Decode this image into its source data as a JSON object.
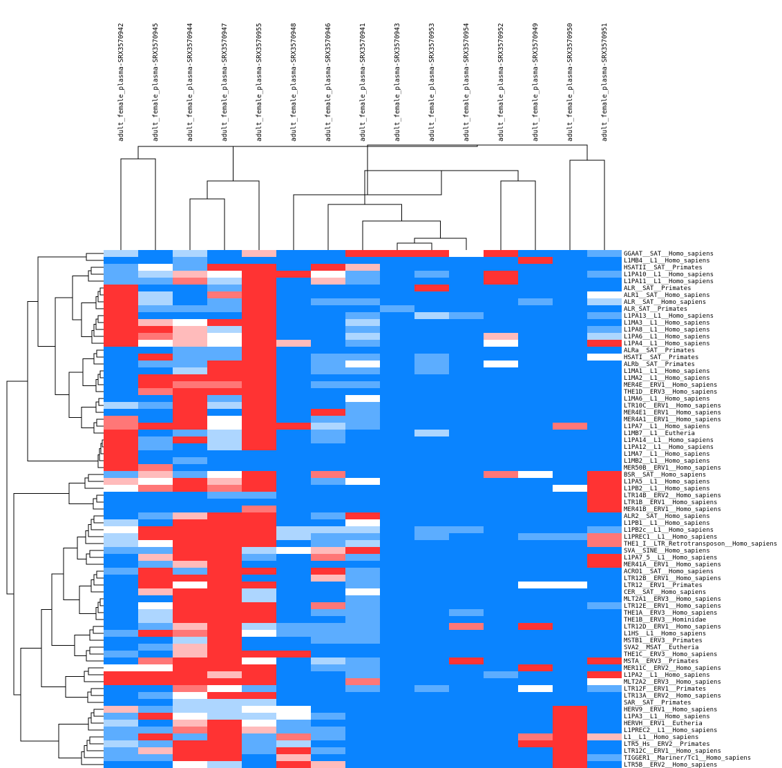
{
  "chart_data": {
    "type": "heatmap",
    "title": "",
    "columns": [
      "adult_female_plasma-SRX3570942",
      "adult_female_plasma-SRX3570945",
      "adult_female_plasma-SRX3570944",
      "adult_female_plasma-SRX3570947",
      "adult_female_plasma-SRX3570955",
      "adult_female_plasma-SRX3570948",
      "adult_female_plasma-SRX3570946",
      "adult_female_plasma-SRX3570941",
      "adult_female_plasma-SRX3570943",
      "adult_female_plasma-SRX3570953",
      "adult_female_plasma-SRX3570954",
      "adult_female_plasma-SRX3570952",
      "adult_female_plasma-SRX3570949",
      "adult_female_plasma-SRX3570950",
      "adult_female_plasma-SRX3570951"
    ],
    "rows": [
      "GGAAT__SAT__Homo_sapiens",
      "L1MB4__L1__Homo_sapiens",
      "HSATII__SAT__Primates",
      "L1PA10__L1__Homo_sapiens",
      "L1PA11__L1__Homo_sapiens",
      "ALR__SAT__Primates",
      "ALR1__SAT__Homo_sapiens",
      "ALR__SAT__Homo_sapiens",
      "ALR_SAT__Primates",
      "L1PA13__L1__Homo_sapiens",
      "L1MA3__L1__Homo_sapiens",
      "L1PA8__L1__Homo_sapiens",
      "L1PA6__L1__Homo_sapiens",
      "L1PA4__L1__Homo_sapiens",
      "ALRa__SAT__Primates",
      "HSATI__SAT__Primates",
      "ALRb__SAT__Primates",
      "L1MA1__L1__Homo_sapiens",
      "L1MA2__L1__Homo_sapiens",
      "MER4E__ERV1__Homo_sapiens",
      "THE1D__ERV3__Homo_sapiens",
      "L1MA6__L1__Homo_sapiens",
      "LTR10C__ERV1__Homo_sapiens",
      "MER4E1__ERV1__Homo_sapiens",
      "MER4A1__ERV1__Homo_sapiens",
      "L1PA7__L1__Homo_sapiens",
      "L1MB7__L1__Eutheria",
      "L1PA14__L1__Homo_sapiens",
      "L1PA12__L1__Homo_sapiens",
      "L1MA7__L1__Homo_sapiens",
      "L1MB2__L1__Homo_sapiens",
      "MER50B__ERV1__Homo_sapiens",
      "BSR__SAT__Homo_sapiens",
      "L1PA5__L1__Homo_sapiens",
      "L1PB2__L1__Homo_sapiens",
      "LTR14B__ERV2__Homo_sapiens",
      "LTR1B__ERV1__Homo_sapiens",
      "MER41B__ERV1__Homo_sapiens",
      "ALR2__SAT__Homo_sapiens",
      "L1PB1__L1__Homo_sapiens",
      "L1PB2c__L1__Homo_sapiens",
      "L1PREC1__L1__Homo_sapiens",
      "THE1_I__LTR_Retrotransposon__Homo_sapiens",
      "SVA__SINE__Homo_sapiens",
      "L1PA7_5__L1__Homo_sapiens",
      "MER41A__ERV1__Homo_sapiens",
      "ACRO1__SAT__Homo_sapiens",
      "LTR12B__ERV1__Homo_sapiens",
      "LTR12__ERV1__Primates",
      "CER__SAT__Homo_sapiens",
      "MLT2A1__ERV3__Homo_sapiens",
      "LTR12E__ERV1__Homo_sapiens",
      "THE1A__ERV3__Homo_sapiens",
      "THE1B__ERV3__Hominidae",
      "LTR12D__ERV1__Homo_sapiens",
      "L1HS__L1__Homo_sapiens",
      "MSTB1__ERV3__Primates",
      "SVA2__MSAT__Eutheria",
      "THE1C__ERV3__Homo_sapiens",
      "MSTA__ERV3__Primates",
      "MER11C__ERV2__Homo_sapiens",
      "L1PA2__L1__Homo_sapiens",
      "MLT2A2__ERV3__Homo_sapiens",
      "LTR12F__ERV1__Primates",
      "LTR13A__ERV2__Homo_sapiens",
      "SAR__SAT__Primates",
      "HERV9__ERV1__Homo_sapiens",
      "L1PA3__L1__Homo_sapiens",
      "HERVH__ERV1__Eutheria",
      "L1PREC2__L1__Homo_sapiens",
      "L1__L1__Homo_sapiens",
      "LTR5_Hs__ERV2__Primates",
      "LTR12C__ERV1__Homo_sapiens",
      "TIGGER1__Mariner/Tc1__Homo_sapiens",
      "LTR5B__ERV2__Homo_sapiens"
    ],
    "colorscale": [
      "#0a84ff",
      "#ffffff",
      "#ff3333"
    ],
    "value_range": [
      -3,
      3
    ],
    "values": [
      [
        -1,
        -3,
        -1,
        -3,
        1,
        -3,
        -3,
        3,
        3,
        3,
        0,
        3,
        -3,
        -3,
        -2
      ],
      [
        -3,
        -3,
        -2,
        -3,
        -3,
        -3,
        -3,
        -3,
        -3,
        -3,
        -3,
        -3,
        3,
        -3,
        -3
      ],
      [
        -2,
        0,
        -2,
        3,
        3,
        -3,
        3,
        1,
        -3,
        -3,
        -3,
        -3,
        -3,
        -3,
        -3
      ],
      [
        -2,
        -1,
        1,
        0,
        3,
        3,
        0,
        -2,
        -3,
        -2,
        -3,
        3,
        -3,
        -3,
        -2
      ],
      [
        -2,
        -2,
        2,
        -1,
        3,
        -3,
        1,
        -2,
        -3,
        -3,
        -3,
        3,
        -3,
        -3,
        -3
      ],
      [
        3,
        -3,
        -3,
        -2,
        3,
        -3,
        -3,
        -3,
        -3,
        3,
        -3,
        -3,
        -3,
        -3,
        -3
      ],
      [
        3,
        -1,
        -3,
        2,
        3,
        -3,
        -3,
        -3,
        -3,
        -3,
        -3,
        -3,
        -3,
        -3,
        0
      ],
      [
        3,
        -1,
        -3,
        -2,
        3,
        -3,
        -2,
        -2,
        -3,
        -3,
        -3,
        -3,
        -2,
        -3,
        -1
      ],
      [
        3,
        -2,
        -2,
        -2,
        3,
        -3,
        -3,
        -3,
        -2,
        -3,
        -3,
        -3,
        -3,
        -3,
        -3
      ],
      [
        3,
        -3,
        -3,
        -3,
        3,
        -3,
        -3,
        -2,
        -3,
        -1,
        -2,
        -3,
        -3,
        -3,
        -2
      ],
      [
        3,
        1,
        0,
        3,
        3,
        -3,
        -3,
        -1,
        -3,
        -3,
        -3,
        -3,
        -3,
        -3,
        -3
      ],
      [
        3,
        3,
        1,
        -1,
        3,
        -3,
        -3,
        -2,
        -3,
        -3,
        -3,
        -3,
        -3,
        -3,
        -2
      ],
      [
        3,
        2,
        1,
        0,
        3,
        -3,
        -3,
        -1,
        -3,
        -3,
        -3,
        1,
        -3,
        -3,
        -1
      ],
      [
        3,
        0,
        1,
        0,
        3,
        1,
        -3,
        -2,
        -3,
        -3,
        -3,
        0,
        -3,
        -3,
        3
      ],
      [
        -3,
        -3,
        -2,
        -2,
        3,
        -3,
        -3,
        -3,
        -3,
        -3,
        -3,
        -3,
        -3,
        -3,
        -3
      ],
      [
        -3,
        3,
        -2,
        -2,
        3,
        -3,
        -2,
        -2,
        -3,
        -2,
        -3,
        -3,
        -3,
        -3,
        0
      ],
      [
        -3,
        -2,
        -2,
        3,
        3,
        -3,
        -2,
        0,
        -3,
        -2,
        -3,
        0,
        -3,
        -3,
        -3
      ],
      [
        -3,
        -3,
        -1,
        3,
        3,
        -3,
        -2,
        -2,
        -3,
        -2,
        -3,
        -3,
        -3,
        -3,
        -3
      ],
      [
        -3,
        3,
        3,
        3,
        3,
        -3,
        -3,
        -3,
        -3,
        -3,
        -3,
        -3,
        -3,
        -3,
        -3
      ],
      [
        -3,
        3,
        2,
        2,
        3,
        -3,
        -2,
        -2,
        -3,
        -3,
        -3,
        -3,
        -3,
        -3,
        -3
      ],
      [
        -3,
        2,
        3,
        3,
        3,
        -3,
        -3,
        -3,
        -3,
        -3,
        -3,
        -3,
        -3,
        -3,
        -3
      ],
      [
        -3,
        -3,
        3,
        -2,
        3,
        -3,
        -3,
        0,
        -3,
        -3,
        -3,
        -3,
        -3,
        -3,
        -3
      ],
      [
        -1,
        -2,
        3,
        -1,
        3,
        -3,
        -3,
        -2,
        -3,
        -3,
        -3,
        -3,
        -3,
        -3,
        -3
      ],
      [
        -3,
        -3,
        3,
        -3,
        3,
        -3,
        3,
        -2,
        -3,
        -3,
        -3,
        -3,
        -3,
        -3,
        -3
      ],
      [
        2,
        -3,
        3,
        0,
        3,
        -3,
        -2,
        -2,
        -3,
        -3,
        -3,
        -3,
        -3,
        -3,
        -3
      ],
      [
        2,
        3,
        3,
        0,
        3,
        3,
        -1,
        -2,
        -3,
        -3,
        -3,
        -3,
        -3,
        2,
        -3
      ],
      [
        3,
        -3,
        -2,
        -1,
        3,
        -3,
        -2,
        -3,
        -3,
        -1,
        -3,
        -3,
        -3,
        -3,
        -3
      ],
      [
        3,
        -2,
        3,
        -1,
        3,
        -3,
        -2,
        -3,
        -3,
        -3,
        -3,
        -3,
        -3,
        -3,
        -3
      ],
      [
        3,
        -2,
        -3,
        -1,
        3,
        -3,
        -3,
        -3,
        -3,
        -3,
        -3,
        -3,
        -3,
        -3,
        -3
      ],
      [
        3,
        -3,
        -3,
        -3,
        -3,
        -3,
        -3,
        -3,
        -3,
        -3,
        -3,
        -3,
        -3,
        -3,
        -3
      ],
      [
        3,
        -3,
        -2,
        -3,
        -3,
        -3,
        -3,
        -3,
        -3,
        -3,
        -3,
        -3,
        -3,
        -3,
        -3
      ],
      [
        3,
        2,
        -3,
        -3,
        -3,
        -3,
        -3,
        -3,
        -3,
        -3,
        -3,
        -3,
        -3,
        -3,
        -3
      ],
      [
        -2,
        1,
        -2,
        0,
        3,
        -3,
        2,
        -3,
        -3,
        -3,
        -3,
        2,
        0,
        -3,
        3
      ],
      [
        1,
        0,
        3,
        1,
        3,
        -3,
        -2,
        0,
        -3,
        -3,
        -3,
        -3,
        -3,
        -3,
        3
      ],
      [
        0,
        2,
        3,
        2,
        3,
        -3,
        -3,
        -3,
        -3,
        -3,
        -3,
        -3,
        -3,
        0,
        3
      ],
      [
        -3,
        -3,
        -3,
        -2,
        -2,
        -3,
        -3,
        -3,
        -3,
        -3,
        -3,
        -3,
        -3,
        -3,
        3
      ],
      [
        -3,
        -3,
        -3,
        -3,
        -3,
        -3,
        -3,
        -3,
        -3,
        -3,
        -3,
        -3,
        -3,
        -3,
        3
      ],
      [
        -3,
        -3,
        -3,
        -3,
        2,
        -3,
        -3,
        -3,
        -3,
        -3,
        -3,
        -3,
        -3,
        -3,
        3
      ],
      [
        -3,
        -2,
        1,
        3,
        3,
        -3,
        -2,
        3,
        -3,
        -3,
        -3,
        -3,
        -3,
        -3,
        -3
      ],
      [
        -1,
        -3,
        3,
        3,
        3,
        -3,
        -3,
        0,
        -3,
        -3,
        -3,
        -3,
        -3,
        -3,
        -3
      ],
      [
        0,
        3,
        3,
        3,
        3,
        -1,
        -1,
        -1,
        -3,
        -2,
        -2,
        -3,
        -3,
        -3,
        -2
      ],
      [
        -1,
        3,
        3,
        3,
        3,
        -1,
        -2,
        -2,
        -3,
        -2,
        -3,
        -3,
        -2,
        -2,
        2
      ],
      [
        -1,
        0,
        3,
        3,
        3,
        -3,
        -2,
        -1,
        -3,
        -3,
        -3,
        -3,
        -3,
        -3,
        2
      ],
      [
        -2,
        -2,
        3,
        3,
        -1,
        0,
        1,
        3,
        -3,
        -3,
        -3,
        -3,
        -3,
        -3,
        -3
      ],
      [
        -3,
        1,
        3,
        3,
        -2,
        -3,
        2,
        -2,
        -3,
        -3,
        -3,
        -3,
        -3,
        -3,
        3
      ],
      [
        -3,
        -2,
        1,
        3,
        -3,
        -3,
        -3,
        -3,
        -3,
        -3,
        -3,
        -3,
        -3,
        -3,
        3
      ],
      [
        -2,
        3,
        -2,
        3,
        3,
        -3,
        3,
        -2,
        -3,
        -3,
        -3,
        -3,
        -3,
        -3,
        -3
      ],
      [
        -3,
        3,
        3,
        3,
        -3,
        -3,
        1,
        -2,
        -3,
        -3,
        -3,
        -3,
        -3,
        -3,
        -3
      ],
      [
        -3,
        3,
        0,
        3,
        3,
        -3,
        -3,
        -2,
        -3,
        -3,
        -3,
        -3,
        0,
        0,
        -3
      ],
      [
        -3,
        1,
        3,
        3,
        -1,
        -3,
        -3,
        0,
        -3,
        -3,
        -3,
        -3,
        -3,
        -3,
        -3
      ],
      [
        -3,
        -3,
        3,
        3,
        -1,
        -3,
        -3,
        -2,
        -3,
        -3,
        -3,
        -3,
        -3,
        -3,
        -3
      ],
      [
        -3,
        0,
        3,
        3,
        3,
        -3,
        2,
        -2,
        -3,
        -3,
        -3,
        -3,
        -3,
        -3,
        -2
      ],
      [
        -3,
        -1,
        3,
        3,
        3,
        -3,
        -2,
        -2,
        -3,
        -3,
        -2,
        -3,
        -3,
        -3,
        -3
      ],
      [
        -3,
        -1,
        3,
        3,
        3,
        -3,
        -3,
        -2,
        -3,
        -3,
        -3,
        -3,
        -3,
        -3,
        -3
      ],
      [
        -3,
        -2,
        1,
        3,
        -1,
        -2,
        -2,
        -2,
        -3,
        -3,
        2,
        -3,
        3,
        -3,
        -3
      ],
      [
        -2,
        3,
        2,
        3,
        0,
        -2,
        -2,
        -2,
        -3,
        -3,
        -3,
        -3,
        -3,
        -3,
        -3
      ],
      [
        -3,
        -3,
        -1,
        3,
        -3,
        -3,
        -2,
        -2,
        -3,
        -3,
        -3,
        -3,
        -3,
        -3,
        -3
      ],
      [
        -3,
        -2,
        1,
        3,
        -3,
        -3,
        -3,
        -3,
        -3,
        -3,
        -3,
        -3,
        -3,
        -3,
        -3
      ],
      [
        -2,
        -3,
        1,
        3,
        3,
        3,
        -3,
        -3,
        -3,
        -3,
        -3,
        -3,
        -3,
        -3,
        -3
      ],
      [
        -3,
        2,
        3,
        3,
        0,
        -3,
        -1,
        -2,
        -3,
        -3,
        3,
        -3,
        -3,
        -3,
        3
      ],
      [
        0,
        0,
        3,
        3,
        3,
        -3,
        -2,
        -2,
        -3,
        -3,
        -3,
        -3,
        3,
        -3,
        -3
      ],
      [
        3,
        3,
        3,
        1,
        3,
        -3,
        -3,
        -2,
        -3,
        -3,
        -3,
        -2,
        -3,
        -3,
        3
      ],
      [
        3,
        3,
        3,
        3,
        3,
        -3,
        -3,
        2,
        -3,
        -3,
        -3,
        -3,
        -3,
        -3,
        0
      ],
      [
        -3,
        -3,
        2,
        0,
        -2,
        -3,
        -3,
        -2,
        -3,
        -2,
        -3,
        -3,
        0,
        -3,
        -2
      ],
      [
        -3,
        -2,
        0,
        3,
        3,
        -3,
        -3,
        -3,
        -3,
        -3,
        -3,
        -3,
        -3,
        -3,
        -3
      ],
      [
        -3,
        -3,
        -1,
        -1,
        -1,
        -3,
        -3,
        -3,
        -3,
        -3,
        -3,
        -3,
        -3,
        -3,
        -3
      ],
      [
        1,
        -2,
        -1,
        -1,
        0,
        0,
        -3,
        -3,
        -3,
        -3,
        -3,
        -3,
        -3,
        3,
        -3
      ],
      [
        -2,
        3,
        0,
        -1,
        -1,
        0,
        -2,
        -3,
        -3,
        -3,
        -3,
        -3,
        -3,
        3,
        -3
      ],
      [
        -1,
        -3,
        1,
        3,
        0,
        -2,
        -3,
        -3,
        -3,
        -3,
        -3,
        -3,
        -3,
        3,
        -3
      ],
      [
        -2,
        -2,
        2,
        3,
        1,
        -2,
        -2,
        -3,
        -3,
        -3,
        -3,
        -3,
        -3,
        3,
        -3
      ],
      [
        -2,
        3,
        -2,
        3,
        -2,
        2,
        -2,
        -3,
        -3,
        -3,
        -3,
        -3,
        2,
        3,
        1
      ],
      [
        -1,
        -2,
        3,
        3,
        -2,
        -1,
        -3,
        -3,
        -3,
        -3,
        -3,
        -3,
        3,
        3,
        -3
      ],
      [
        -2,
        1,
        3,
        3,
        -2,
        3,
        -2,
        -3,
        -3,
        -3,
        -3,
        -3,
        -3,
        3,
        -3
      ],
      [
        -2,
        -2,
        3,
        3,
        -3,
        1,
        -3,
        -3,
        -3,
        -3,
        -3,
        -3,
        -3,
        3,
        -2
      ],
      [
        -3,
        -3,
        0,
        -1,
        -3,
        3,
        1,
        -3,
        -3,
        -3,
        -3,
        -3,
        -3,
        3,
        -3
      ]
    ]
  }
}
